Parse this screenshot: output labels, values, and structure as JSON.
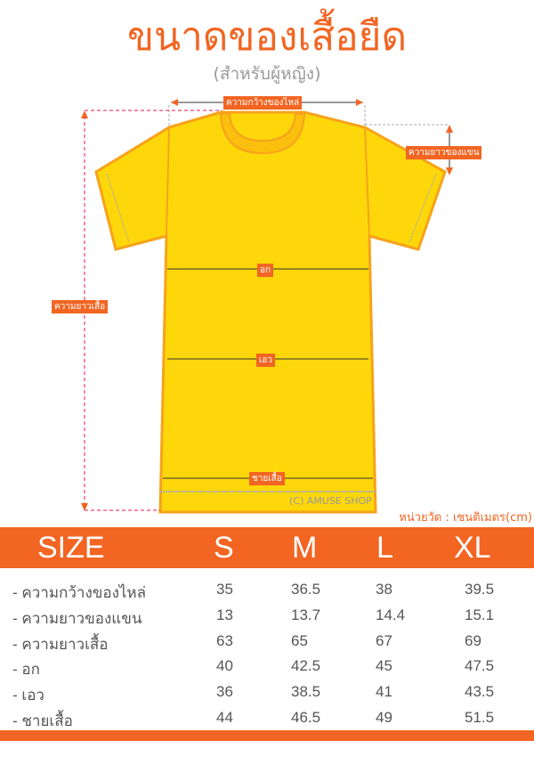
{
  "header": {
    "title": "ขนาดของเสื้อยืด",
    "subtitle": "(สำหรับผู้หญิง)"
  },
  "diagram": {
    "labels": {
      "shoulder": "ความกว้างของไหล่",
      "sleeve": "ความยาวของแขน",
      "length": "ความยาวเสื้อ",
      "chest": "อก",
      "waist": "เอว",
      "hem": "ชายเสื้อ"
    },
    "watermark": "(C) AMUSE SHOP",
    "shirt_color": "#fdd70a",
    "accent": "#f26522"
  },
  "unit": "หน่วยวัด : เซนติเมตร(cm)",
  "table": {
    "headers": [
      "SIZE",
      "S",
      "M",
      "L",
      "XL"
    ],
    "rows": [
      {
        "label": "- ความกว้างของไหล่",
        "values": [
          "35",
          "36.5",
          "38",
          "39.5"
        ]
      },
      {
        "label": "- ความยาวของแขน",
        "values": [
          "13",
          "13.7",
          "14.4",
          "15.1"
        ]
      },
      {
        "label": "- ความยาวเสื้อ",
        "values": [
          "63",
          "65",
          "67",
          "69"
        ]
      },
      {
        "label": "- อก",
        "values": [
          "40",
          "42.5",
          "45",
          "47.5"
        ]
      },
      {
        "label": "- เอว",
        "values": [
          "36",
          "38.5",
          "41",
          "43.5"
        ]
      },
      {
        "label": "- ชายเสื้อ",
        "values": [
          "44",
          "46.5",
          "49",
          "51.5"
        ]
      }
    ]
  }
}
